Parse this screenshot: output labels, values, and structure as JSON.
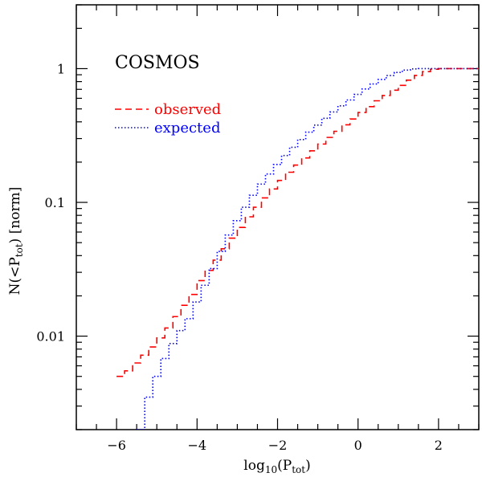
{
  "chart_data": {
    "type": "line",
    "panel_label": "COSMOS",
    "xlabel": {
      "base": "log",
      "base_sub": "10",
      "open": "(P",
      "var_sub": "tot",
      "close": ")"
    },
    "ylabel": {
      "prefix": "N(<P",
      "var_sub": "tot",
      "suffix": ")  [norm]"
    },
    "xlim": [
      -7,
      3
    ],
    "ylim": [
      0.002,
      3.0
    ],
    "yscale": "log",
    "x_ticks": [
      -6,
      -4,
      -2,
      0,
      2
    ],
    "x_tick_labels": [
      "−6",
      "−4",
      "−2",
      "0",
      "2"
    ],
    "y_ticks": [
      0.01,
      0.1,
      1
    ],
    "y_tick_labels": [
      "0.01",
      "0.1",
      "1"
    ],
    "legend_position": "top-left",
    "series": [
      {
        "name": "observed",
        "color": "#ff0000",
        "dash": "dashed",
        "x": [
          -6.0,
          -5.8,
          -5.6,
          -5.4,
          -5.2,
          -5.0,
          -4.8,
          -4.6,
          -4.4,
          -4.2,
          -4.0,
          -3.8,
          -3.6,
          -3.4,
          -3.2,
          -3.0,
          -2.8,
          -2.6,
          -2.4,
          -2.2,
          -2.0,
          -1.8,
          -1.6,
          -1.4,
          -1.2,
          -1.0,
          -0.8,
          -0.6,
          -0.4,
          -0.2,
          0.0,
          0.2,
          0.4,
          0.6,
          0.8,
          1.0,
          1.2,
          1.4,
          1.6,
          1.8,
          2.0,
          2.2,
          2.4,
          2.6,
          2.8,
          3.0
        ],
        "y": [
          0.005,
          0.0055,
          0.0063,
          0.0072,
          0.0083,
          0.0097,
          0.0115,
          0.014,
          0.017,
          0.0205,
          0.026,
          0.031,
          0.037,
          0.045,
          0.054,
          0.065,
          0.078,
          0.092,
          0.108,
          0.126,
          0.146,
          0.168,
          0.19,
          0.215,
          0.243,
          0.273,
          0.306,
          0.34,
          0.38,
          0.42,
          0.47,
          0.52,
          0.575,
          0.63,
          0.69,
          0.75,
          0.82,
          0.89,
          0.95,
          0.99,
          1.0,
          1.0,
          1.0,
          1.0,
          1.0,
          1.0
        ]
      },
      {
        "name": "expected",
        "color": "#0000ff",
        "dash": "dotted",
        "x": [
          -5.5,
          -5.3,
          -5.1,
          -4.9,
          -4.7,
          -4.5,
          -4.3,
          -4.1,
          -3.9,
          -3.7,
          -3.5,
          -3.3,
          -3.1,
          -2.9,
          -2.7,
          -2.5,
          -2.3,
          -2.1,
          -1.9,
          -1.7,
          -1.5,
          -1.3,
          -1.1,
          -0.9,
          -0.7,
          -0.5,
          -0.3,
          -0.1,
          0.1,
          0.3,
          0.5,
          0.7,
          0.9,
          1.1,
          1.3,
          1.5,
          1.7,
          1.9,
          2.1,
          2.3,
          2.5,
          2.7,
          2.9,
          3.0
        ],
        "y": [
          0.002,
          0.0035,
          0.005,
          0.0068,
          0.0088,
          0.011,
          0.0135,
          0.018,
          0.024,
          0.032,
          0.043,
          0.057,
          0.073,
          0.092,
          0.113,
          0.137,
          0.163,
          0.192,
          0.224,
          0.258,
          0.295,
          0.335,
          0.378,
          0.425,
          0.474,
          0.527,
          0.583,
          0.642,
          0.704,
          0.768,
          0.83,
          0.888,
          0.937,
          0.975,
          0.995,
          1.0,
          1.0,
          1.0,
          1.0,
          1.0,
          1.0,
          1.0,
          1.0,
          1.0
        ]
      }
    ]
  }
}
